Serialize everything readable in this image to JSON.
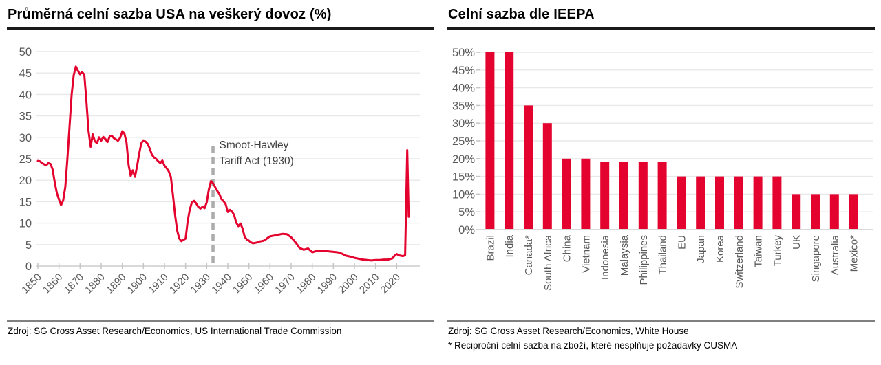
{
  "left_panel": {
    "title": "Průměrná celní sazba USA na veškerý dovoz (%)",
    "source": "Zdroj: SG Cross Asset Research/Economics, US International Trade Commission"
  },
  "right_panel": {
    "title": "Celní sazba dle IEEPA",
    "source": "Zdroj: SG Cross Asset Research/Economics, White House",
    "footnote": "* Reciproční celní sazba na zboží, které nesplňuje požadavky CUSMA"
  },
  "colors": {
    "accent_red": "#E4032E",
    "grid": "#E8E8E8",
    "axis_line": "#D9D9D9",
    "axis_tick": "#C6C6C6",
    "axis_text": "#595959",
    "dashed_line": "#ABABAB",
    "annotation_text": "#3F3F3F",
    "title_rule": "#1A1A1A",
    "source_rule": "#808080"
  },
  "chart_data": [
    {
      "type": "line",
      "title": "Průměrná celní sazba USA na veškerý dovoz (%)",
      "ylabel": "",
      "ylim": [
        0,
        50
      ],
      "ytick_step": 5,
      "ytick_suffix": "",
      "xlim": [
        1850,
        2030
      ],
      "xticks": [
        1850,
        1860,
        1870,
        1880,
        1890,
        1900,
        1910,
        1920,
        1930,
        1940,
        1950,
        1960,
        1970,
        1980,
        1990,
        2000,
        2010,
        2020
      ],
      "grid": true,
      "legend": "none",
      "annotation": {
        "lines": [
          "Smoot-Hawley",
          "Tariff Act (1930)"
        ],
        "year": 1933
      },
      "points": [
        [
          1850,
          24.5
        ],
        [
          1851,
          24.4
        ],
        [
          1852,
          24.0
        ],
        [
          1853,
          23.7
        ],
        [
          1854,
          23.5
        ],
        [
          1855,
          24.0
        ],
        [
          1856,
          23.8
        ],
        [
          1857,
          22.5
        ],
        [
          1858,
          19.5
        ],
        [
          1859,
          17.0
        ],
        [
          1860,
          15.5
        ],
        [
          1861,
          14.2
        ],
        [
          1862,
          15.3
        ],
        [
          1863,
          18.5
        ],
        [
          1864,
          25.0
        ],
        [
          1865,
          32.5
        ],
        [
          1866,
          40.0
        ],
        [
          1867,
          44.5
        ],
        [
          1868,
          46.5
        ],
        [
          1869,
          45.5
        ],
        [
          1870,
          44.7
        ],
        [
          1871,
          45.2
        ],
        [
          1872,
          44.6
        ],
        [
          1873,
          38.5
        ],
        [
          1874,
          31.5
        ],
        [
          1875,
          27.8
        ],
        [
          1876,
          30.7
        ],
        [
          1877,
          29.1
        ],
        [
          1878,
          28.6
        ],
        [
          1879,
          30.0
        ],
        [
          1880,
          29.2
        ],
        [
          1881,
          30.1
        ],
        [
          1882,
          29.6
        ],
        [
          1883,
          28.9
        ],
        [
          1884,
          30.2
        ],
        [
          1885,
          30.4
        ],
        [
          1886,
          29.8
        ],
        [
          1887,
          29.5
        ],
        [
          1888,
          29.2
        ],
        [
          1889,
          29.9
        ],
        [
          1890,
          31.4
        ],
        [
          1891,
          30.9
        ],
        [
          1892,
          28.8
        ],
        [
          1893,
          23.5
        ],
        [
          1894,
          21.0
        ],
        [
          1895,
          22.3
        ],
        [
          1896,
          20.8
        ],
        [
          1897,
          23.2
        ],
        [
          1898,
          26.2
        ],
        [
          1899,
          28.6
        ],
        [
          1900,
          29.3
        ],
        [
          1901,
          29.0
        ],
        [
          1902,
          28.5
        ],
        [
          1903,
          27.4
        ],
        [
          1904,
          26.0
        ],
        [
          1905,
          25.3
        ],
        [
          1906,
          25.0
        ],
        [
          1907,
          24.4
        ],
        [
          1908,
          24.0
        ],
        [
          1909,
          24.6
        ],
        [
          1910,
          23.4
        ],
        [
          1911,
          22.8
        ],
        [
          1912,
          22.1
        ],
        [
          1913,
          20.8
        ],
        [
          1914,
          16.5
        ],
        [
          1915,
          12.0
        ],
        [
          1916,
          8.3
        ],
        [
          1917,
          6.4
        ],
        [
          1918,
          5.8
        ],
        [
          1919,
          6.1
        ],
        [
          1920,
          6.4
        ],
        [
          1921,
          10.5
        ],
        [
          1922,
          13.2
        ],
        [
          1923,
          14.9
        ],
        [
          1924,
          15.2
        ],
        [
          1925,
          14.6
        ],
        [
          1926,
          13.8
        ],
        [
          1927,
          13.4
        ],
        [
          1928,
          13.8
        ],
        [
          1929,
          13.5
        ],
        [
          1930,
          14.8
        ],
        [
          1931,
          17.8
        ],
        [
          1932,
          19.8
        ],
        [
          1933,
          19.3
        ],
        [
          1934,
          18.4
        ],
        [
          1935,
          17.5
        ],
        [
          1936,
          16.8
        ],
        [
          1937,
          15.6
        ],
        [
          1938,
          15.1
        ],
        [
          1939,
          14.4
        ],
        [
          1940,
          12.6
        ],
        [
          1941,
          13.1
        ],
        [
          1942,
          12.7
        ],
        [
          1943,
          11.9
        ],
        [
          1944,
          10.1
        ],
        [
          1945,
          9.3
        ],
        [
          1946,
          9.9
        ],
        [
          1947,
          8.7
        ],
        [
          1948,
          6.8
        ],
        [
          1949,
          6.2
        ],
        [
          1950,
          5.9
        ],
        [
          1951,
          5.5
        ],
        [
          1952,
          5.3
        ],
        [
          1953,
          5.4
        ],
        [
          1954,
          5.5
        ],
        [
          1955,
          5.7
        ],
        [
          1956,
          5.8
        ],
        [
          1957,
          5.9
        ],
        [
          1958,
          6.2
        ],
        [
          1959,
          6.6
        ],
        [
          1960,
          6.9
        ],
        [
          1962,
          7.1
        ],
        [
          1964,
          7.3
        ],
        [
          1966,
          7.5
        ],
        [
          1968,
          7.4
        ],
        [
          1970,
          6.7
        ],
        [
          1972,
          5.6
        ],
        [
          1974,
          4.2
        ],
        [
          1976,
          3.8
        ],
        [
          1978,
          4.1
        ],
        [
          1980,
          3.2
        ],
        [
          1982,
          3.5
        ],
        [
          1984,
          3.6
        ],
        [
          1986,
          3.6
        ],
        [
          1988,
          3.4
        ],
        [
          1990,
          3.3
        ],
        [
          1992,
          3.2
        ],
        [
          1994,
          2.9
        ],
        [
          1996,
          2.4
        ],
        [
          1998,
          2.2
        ],
        [
          2000,
          1.9
        ],
        [
          2002,
          1.7
        ],
        [
          2004,
          1.5
        ],
        [
          2006,
          1.4
        ],
        [
          2008,
          1.3
        ],
        [
          2010,
          1.4
        ],
        [
          2012,
          1.4
        ],
        [
          2014,
          1.5
        ],
        [
          2016,
          1.5
        ],
        [
          2018,
          1.8
        ],
        [
          2019,
          2.4
        ],
        [
          2020,
          2.8
        ],
        [
          2021,
          2.5
        ],
        [
          2022,
          2.4
        ],
        [
          2023,
          2.3
        ],
        [
          2024,
          2.5
        ],
        [
          2025,
          27.0
        ],
        [
          2025.7,
          11.5
        ]
      ]
    },
    {
      "type": "bar",
      "title": "Celní sazba dle IEEPA",
      "ylim": [
        0,
        50
      ],
      "ytick_step": 5,
      "ytick_suffix": "%",
      "grid": true,
      "legend": "none",
      "categories": [
        "Brazil",
        "India",
        "Canada*",
        "South Africa",
        "China",
        "Vietnam",
        "Indonesia",
        "Malaysia",
        "Philippines",
        "Thailand",
        "EU",
        "Japan",
        "Korea",
        "Switzerland",
        "Taiwan",
        "Turkey",
        "UK",
        "Singapore",
        "Australia",
        "Mexico*"
      ],
      "values": [
        50,
        50,
        35,
        30,
        20,
        20,
        19,
        19,
        19,
        19,
        15,
        15,
        15,
        15,
        15,
        15,
        10,
        10,
        10,
        10
      ]
    }
  ]
}
